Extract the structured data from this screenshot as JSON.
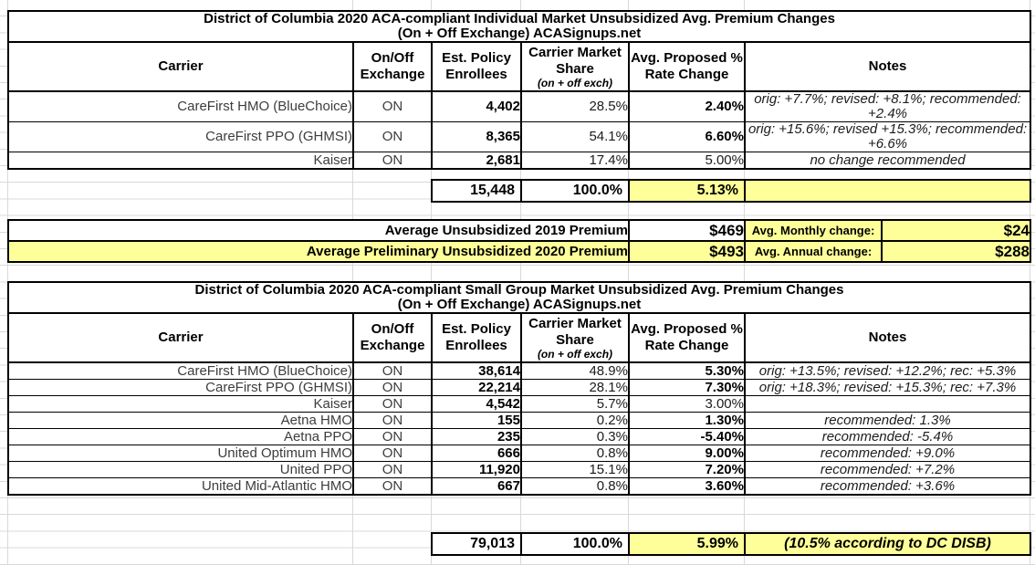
{
  "colors": {
    "highlight": "#ffff99",
    "gridline": "#d9d9d9",
    "border": "#000000"
  },
  "headers": {
    "carrier": "Carrier",
    "exchange": "On/Off Exchange",
    "enrollees": "Est. Policy Enrollees",
    "share": "Carrier Market Share",
    "share_sub": "(on + off exch)",
    "rate": "Avg. Proposed % Rate Change",
    "notes": "Notes"
  },
  "tables": [
    {
      "title_line1": "District of Columbia 2020 ACA-compliant Individual Market Unsubsidized Avg. Premium Changes",
      "title_line2": "(On + Off Exchange) ACASignups.net",
      "rows": [
        {
          "carrier": "CareFirst HMO (BlueChoice)",
          "exchange": "ON",
          "enrollees": "4,402",
          "share": "28.5%",
          "rate": "2.40%",
          "rate_bold": true,
          "note": "orig: +7.7%; revised: +8.1%; recommended: +2.4%"
        },
        {
          "carrier": "CareFirst PPO (GHMSI)",
          "exchange": "ON",
          "enrollees": "8,365",
          "share": "54.1%",
          "rate": "6.60%",
          "rate_bold": true,
          "note": "orig: +15.6%; revised +15.3%; recommended: +6.6%"
        },
        {
          "carrier": "Kaiser",
          "exchange": "ON",
          "enrollees": "2,681",
          "share": "17.4%",
          "rate": "5.00%",
          "rate_bold": false,
          "note": "no change recommended"
        }
      ],
      "total": {
        "enrollees": "15,448",
        "share": "100.0%",
        "rate": "5.13%",
        "note": ""
      }
    },
    {
      "title_line1": "District of Columbia 2020 ACA-compliant Small Group Market Unsubsidized Avg. Premium Changes",
      "title_line2": "(On + Off Exchange) ACASignups.net",
      "rows": [
        {
          "carrier": "CareFirst HMO (BlueChoice)",
          "exchange": "ON",
          "enrollees": "38,614",
          "share": "48.9%",
          "rate": "5.30%",
          "rate_bold": true,
          "note": "orig: +13.5%; revised: +12.2%; rec: +5.3%"
        },
        {
          "carrier": "CareFirst PPO (GHMSI)",
          "exchange": "ON",
          "enrollees": "22,214",
          "share": "28.1%",
          "rate": "7.30%",
          "rate_bold": true,
          "note": "orig: +18.3%; revised: +15.3%; rec: +7.3%"
        },
        {
          "carrier": "Kaiser",
          "exchange": "ON",
          "enrollees": "4,542",
          "share": "5.7%",
          "rate": "3.00%",
          "rate_bold": false,
          "note": ""
        },
        {
          "carrier": "Aetna HMO",
          "exchange": "ON",
          "enrollees": "155",
          "share": "0.2%",
          "rate": "1.30%",
          "rate_bold": true,
          "note": "recommended: 1.3%"
        },
        {
          "carrier": "Aetna PPO",
          "exchange": "ON",
          "enrollees": "235",
          "share": "0.3%",
          "rate": "-5.40%",
          "rate_bold": true,
          "note": "recommended: -5.4%"
        },
        {
          "carrier": "United Optimum HMO",
          "exchange": "ON",
          "enrollees": "666",
          "share": "0.8%",
          "rate": "9.00%",
          "rate_bold": true,
          "note": "recommended: +9.0%"
        },
        {
          "carrier": "United PPO",
          "exchange": "ON",
          "enrollees": "11,920",
          "share": "15.1%",
          "rate": "7.20%",
          "rate_bold": true,
          "note": "recommended: +7.2%"
        },
        {
          "carrier": "United Mid-Atlantic HMO",
          "exchange": "ON",
          "enrollees": "667",
          "share": "0.8%",
          "rate": "3.60%",
          "rate_bold": true,
          "note": "recommended: +3.6%"
        }
      ],
      "total": {
        "enrollees": "79,013",
        "share": "100.0%",
        "rate": "5.99%",
        "note": "(10.5% according to DC DISB)"
      }
    }
  ],
  "summary": {
    "row_2019": {
      "label": "Average Unsubsidized 2019 Premium",
      "value": "$469"
    },
    "row_2020": {
      "label": "Average Preliminary Unsubsidized 2020 Premium",
      "value": "$493"
    },
    "monthly": {
      "label": "Avg. Monthly change:",
      "value": "$24"
    },
    "annual": {
      "label": "Avg. Annual change:",
      "value": "$288"
    }
  }
}
